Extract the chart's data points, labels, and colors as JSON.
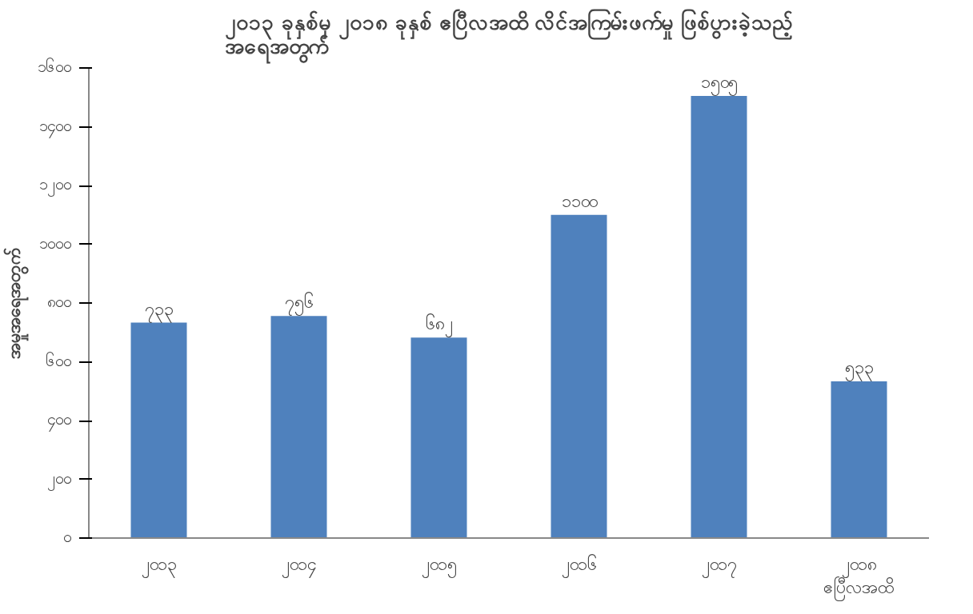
{
  "chart_data": {
    "type": "bar",
    "title": "၂၀၁၃ ခုနှစ်မှ ၂၀၁၈ ခုနှစ် ဧပြီလအထိ လိင်အကြမ်းဖက်မှု ဖြစ်ပွားခဲ့သည့်\nအရေအတွက်",
    "ylabel": "အမှုအရေအတွက်",
    "categories": [
      "၂၀၁၃",
      "၂၀၁၄",
      "၂၀၁၅",
      "၂၀၁၆",
      "၂၀၁၇",
      "၂၀၁၈\nဧပြီလအထိ"
    ],
    "values": [
      733,
      756,
      682,
      1100,
      1505,
      533
    ],
    "color": "#4f81bd",
    "value_labels": [
      "၇၃၃",
      "၇၅၆",
      "၆၈၂",
      "၁၁၀၀",
      "၁၅၀၅",
      "၅၃၃"
    ],
    "ylim": [
      0,
      1600
    ],
    "yticks": [
      {
        "value": 0,
        "label": "၀"
      },
      {
        "value": 200,
        "label": "၂၀၀"
      },
      {
        "value": 400,
        "label": "၄၀၀"
      },
      {
        "value": 600,
        "label": "၆၀၀"
      },
      {
        "value": 800,
        "label": "၈၀၀"
      },
      {
        "value": 1000,
        "label": "၁၀၀၀"
      },
      {
        "value": 1200,
        "label": "၁၂၀၀"
      },
      {
        "value": 1400,
        "label": "၁၄၀၀"
      },
      {
        "value": 1600,
        "label": "၁၆၀၀"
      }
    ],
    "grid": false
  }
}
